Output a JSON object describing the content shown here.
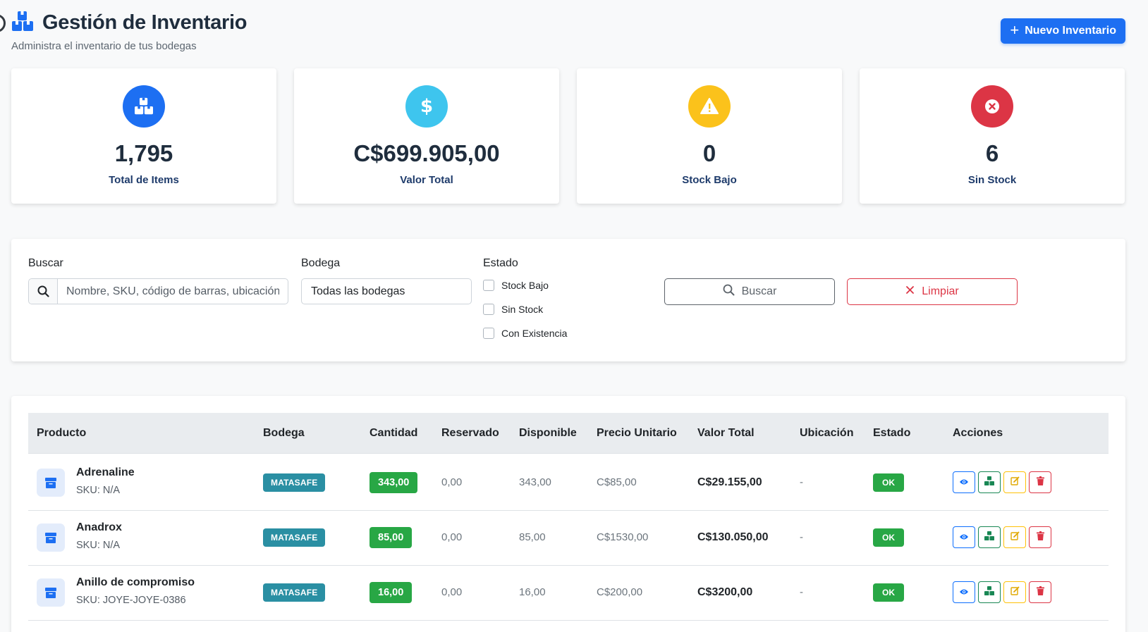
{
  "header": {
    "title": "Gestión de Inventario",
    "subtitle": "Administra el inventario de tus bodegas",
    "new_button_label": "Nuevo Inventario"
  },
  "stats": [
    {
      "value": "1,795",
      "label": "Total de Items",
      "color": "#1d6ff2",
      "icon": "boxes-icon"
    },
    {
      "value": "C$699.905,00",
      "label": "Valor Total",
      "color": "#3ec5ee",
      "icon": "dollar-icon"
    },
    {
      "value": "0",
      "label": "Stock Bajo",
      "color": "#fbc21b",
      "icon": "warning-icon"
    },
    {
      "value": "6",
      "label": "Sin Stock",
      "color": "#dc3545",
      "icon": "x-circle-icon"
    }
  ],
  "filters": {
    "search_label": "Buscar",
    "search_placeholder": "Nombre, SKU, código de barras, ubicación",
    "warehouse_label": "Bodega",
    "warehouse_selected": "Todas las bodegas",
    "status_label": "Estado",
    "status_options": [
      "Stock Bajo",
      "Sin Stock",
      "Con Existencia"
    ],
    "search_button": "Buscar",
    "clear_button": "Limpiar"
  },
  "table": {
    "columns": [
      "Producto",
      "Bodega",
      "Cantidad",
      "Reservado",
      "Disponible",
      "Precio Unitario",
      "Valor Total",
      "Ubicación",
      "Estado",
      "Acciones"
    ],
    "rows": [
      {
        "name": "Adrenaline",
        "sku": "SKU: N/A",
        "warehouse": "MATASAFE",
        "quantity": "343,00",
        "reserved": "0,00",
        "available": "343,00",
        "unit_price": "C$85,00",
        "total": "C$29.155,00",
        "location": "-",
        "status": "OK"
      },
      {
        "name": "Anadrox",
        "sku": "SKU: N/A",
        "warehouse": "MATASAFE",
        "quantity": "85,00",
        "reserved": "0,00",
        "available": "85,00",
        "unit_price": "C$1530,00",
        "total": "C$130.050,00",
        "location": "-",
        "status": "OK"
      },
      {
        "name": "Anillo de compromiso",
        "sku": "SKU: JOYE-JOYE-0386",
        "warehouse": "MATASAFE",
        "quantity": "16,00",
        "reserved": "0,00",
        "available": "16,00",
        "unit_price": "C$200,00",
        "total": "C$3200,00",
        "location": "-",
        "status": "OK"
      }
    ]
  },
  "colors": {
    "primary": "#1d6ff2",
    "success": "#28a745",
    "info_badge": "#2a8fa3",
    "danger": "#dc3545",
    "warning": "#ffc107"
  }
}
